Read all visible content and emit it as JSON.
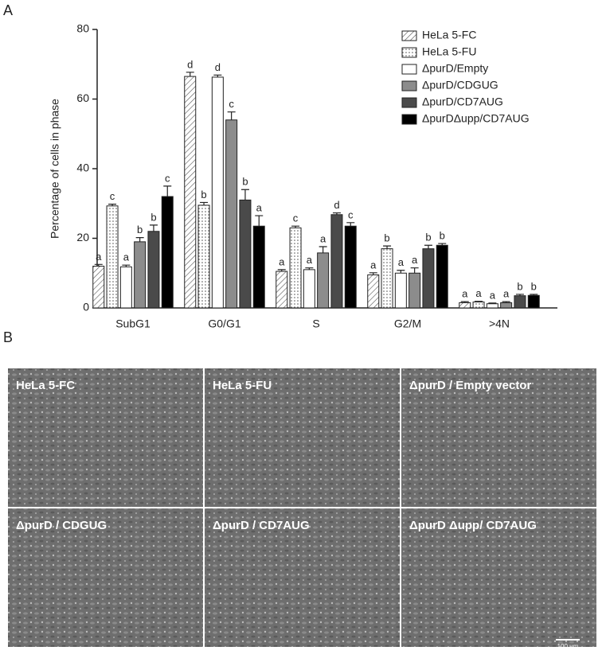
{
  "chart_data": {
    "type": "bar",
    "ylabel": "Percentage of cells in phase",
    "categories": [
      "SubG1",
      "G0/G1",
      "S",
      "G2/M",
      ">4N"
    ],
    "ylim": [
      0,
      80
    ],
    "yticks": [
      0,
      20,
      40,
      60,
      80
    ],
    "series": [
      {
        "name": "HeLa 5-FC",
        "color": "#ffffff",
        "pattern": "hatch",
        "values": [
          12,
          66.5,
          10.5,
          9.5,
          1.5
        ],
        "errors": [
          0.5,
          1.2,
          0.5,
          0.6,
          0.3
        ],
        "letters": [
          "a",
          "d",
          "a",
          "a",
          "a"
        ]
      },
      {
        "name": "HeLa 5-FU",
        "color": "#ffffff",
        "pattern": "dots",
        "values": [
          29.3,
          29.5,
          23,
          17,
          1.7
        ],
        "errors": [
          0.5,
          0.8,
          0.5,
          0.8,
          0.2
        ],
        "letters": [
          "c",
          "b",
          "c",
          "b",
          "a"
        ]
      },
      {
        "name": "ΔpurD/Empty",
        "color": "#ffffff",
        "values": [
          11.8,
          66.3,
          11,
          10,
          1.2
        ],
        "errors": [
          0.5,
          0.6,
          0.5,
          0.8,
          0.2
        ],
        "letters": [
          "a",
          "d",
          "a",
          "a",
          "a"
        ]
      },
      {
        "name": "ΔpurD/CDGUG",
        "color": "#8c8c8c",
        "values": [
          19,
          54,
          15.8,
          10,
          1.5
        ],
        "errors": [
          1.2,
          2.3,
          1.8,
          1.5,
          0.3
        ],
        "letters": [
          "b",
          "c",
          "a",
          "a",
          "a"
        ]
      },
      {
        "name": "ΔpurD/CD7AUG",
        "color": "#4a4a4a",
        "values": [
          22,
          31,
          26.8,
          17,
          3.5
        ],
        "errors": [
          1.8,
          3,
          0.5,
          1,
          0.4
        ],
        "letters": [
          "b",
          "b",
          "d",
          "b",
          "b"
        ]
      },
      {
        "name": "ΔpurDΔupp/CD7AUG",
        "color": "#000000",
        "values": [
          32,
          23.5,
          23.5,
          18,
          3.6
        ],
        "errors": [
          3,
          3,
          1,
          0.5,
          0.3
        ],
        "letters": [
          "c",
          "a",
          "c",
          "b",
          "b"
        ]
      }
    ]
  },
  "figure": {
    "panel_labels": [
      "A",
      "B"
    ],
    "images": [
      "HeLa 5-FC",
      "HeLa 5-FU",
      "ΔpurD / Empty vector",
      "ΔpurD / CDGUG",
      "ΔpurD / CD7AUG",
      "ΔpurD Δupp/ CD7AUG"
    ],
    "scale_bar": "100 µm"
  }
}
